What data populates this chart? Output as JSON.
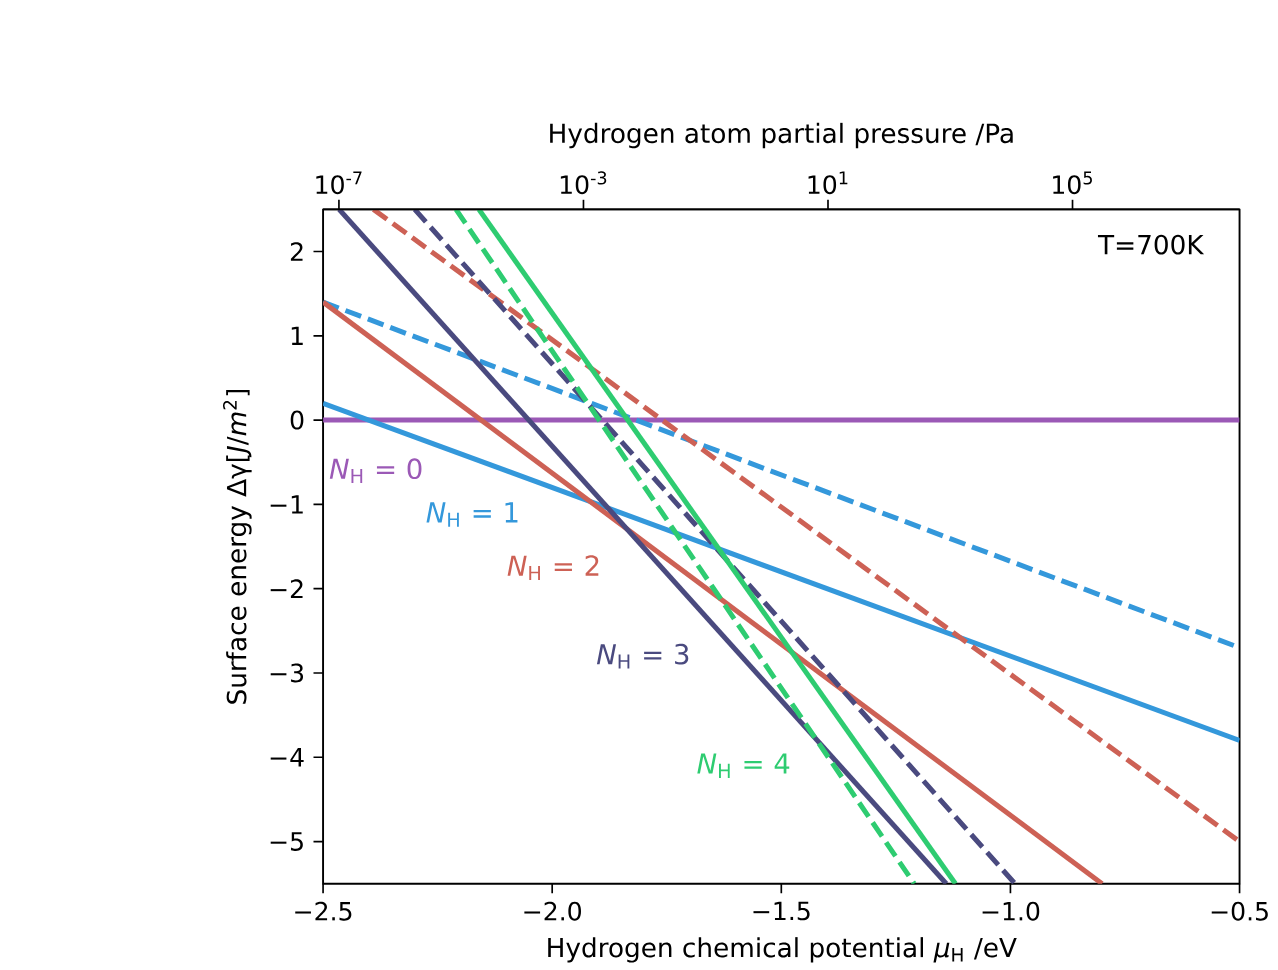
{
  "chart_data": {
    "type": "line",
    "xlabel": "Hydrogen chemical potential *μ*$_{H}$ /eV",
    "ylabel": "Surface energy Δγ[*J*/*m*$^{2}$]",
    "x2label": "Hydrogen atom partial pressure /Pa",
    "annotations": [
      "T=700K"
    ],
    "xlim": [
      -2.5,
      -0.5
    ],
    "xticks": [
      {
        "value": -2.5,
        "label": "−2.5"
      },
      {
        "value": -2.0,
        "label": "−2.0"
      },
      {
        "value": -1.5,
        "label": "−1.5"
      },
      {
        "value": -1.0,
        "label": "−1.0"
      },
      {
        "value": -0.5,
        "label": "−0.5"
      }
    ],
    "ylim": [
      -5.5,
      2.5
    ],
    "yticks": [
      {
        "value": -5,
        "label": "−5"
      },
      {
        "value": -4,
        "label": "−4"
      },
      {
        "value": -3,
        "label": "−3"
      },
      {
        "value": -2,
        "label": "−2"
      },
      {
        "value": -1,
        "label": "−1"
      },
      0,
      1,
      2
    ],
    "x2lim": [
      5.5e-08,
      54000000.0
    ],
    "x2ticks": [
      {
        "value": 1e-07,
        "label": "10$^{-7}$"
      },
      {
        "value": 0.001,
        "label": "10$^{-3}$"
      },
      {
        "value": 10,
        "label": "10$^{1}$"
      },
      {
        "value": 100000,
        "label": "10$^{5}$"
      }
    ],
    "log": "x2",
    "grid": false,
    "legend": false,
    "series": [
      {
        "name": "*N*$_{H}$ = 0",
        "color": "#9b59b6",
        "x": [
          -2.5,
          -0.5
        ],
        "values": [
          0,
          0
        ],
        "line_style": "solid"
      },
      {
        "name": "*N*$_{H}$ = 1",
        "color": "#3498db",
        "x": [
          -2.5,
          -0.5
        ],
        "values": [
          0.2,
          -3.8
        ],
        "line_style": "solid"
      },
      {
        "color": "#3498db",
        "x": [
          -2.5,
          -0.5
        ],
        "values": [
          1.4,
          -2.7
        ],
        "line_style": "dashed"
      },
      {
        "name": "*N*$_{H}$ = 2",
        "color": "#cd6155",
        "x": [
          -2.5,
          -0.8
        ],
        "values": [
          1.4,
          -5.5
        ],
        "line_style": "solid"
      },
      {
        "color": "#cd6155",
        "x": [
          -2.39,
          -0.5
        ],
        "values": [
          2.5,
          -5.0
        ],
        "line_style": "dashed"
      },
      {
        "name": "*N*$_{H}$ = 3",
        "color": "#4a4a7f",
        "x": [
          -2.465,
          -1.14
        ],
        "values": [
          2.5,
          -5.5
        ],
        "line_style": "solid"
      },
      {
        "color": "#4a4a7f",
        "x": [
          -2.3,
          -0.99
        ],
        "values": [
          2.5,
          -5.5
        ],
        "line_style": "dashed"
      },
      {
        "name": "*N*$_{H}$ = 4",
        "color": "#2ecc71",
        "x": [
          -2.16,
          -1.12
        ],
        "values": [
          2.5,
          -5.5
        ],
        "line_style": "solid"
      },
      {
        "color": "#2ecc71",
        "x": [
          -2.21,
          -1.21
        ],
        "values": [
          2.5,
          -5.5
        ],
        "line_style": "dashed"
      }
    ]
  }
}
